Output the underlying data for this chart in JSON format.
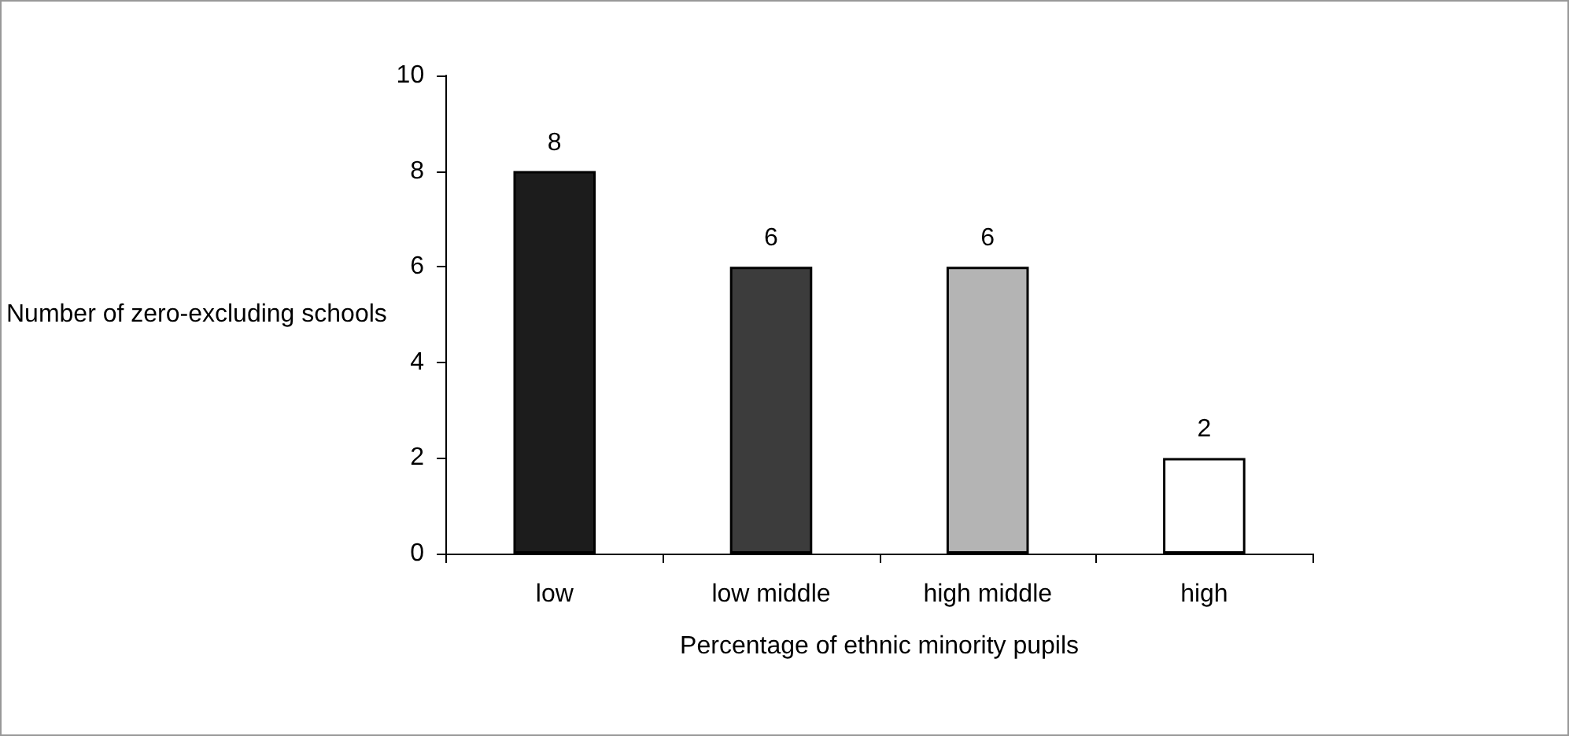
{
  "chart_data": {
    "type": "bar",
    "xlabel": "Percentage of ethnic minority pupils",
    "ylabel": "Number of zero-excluding schools",
    "categories": [
      "low",
      "low middle",
      "high middle",
      "high"
    ],
    "values": [
      8,
      6,
      6,
      2
    ],
    "colors": [
      "#1c1c1c",
      "#3c3c3c",
      "#b4b4b4",
      "#ffffff"
    ],
    "ylim": [
      0,
      10
    ],
    "yticks": [
      0,
      2,
      4,
      6,
      8,
      10
    ],
    "grid": false,
    "data_labels": true
  }
}
